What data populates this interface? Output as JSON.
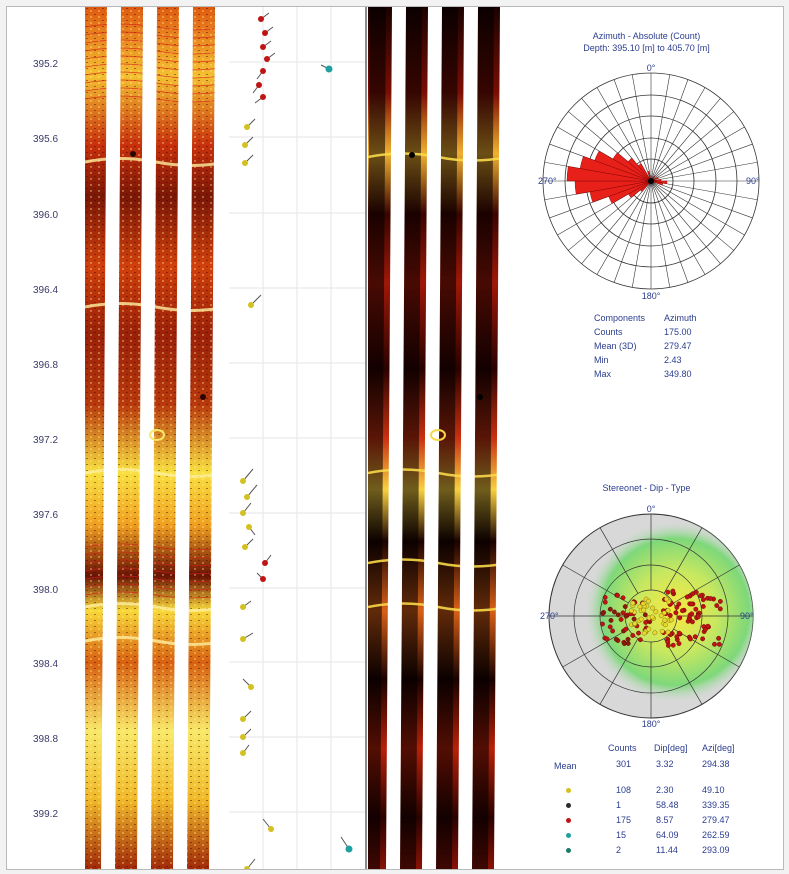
{
  "depth_axis": {
    "labels": [
      "395.2",
      "395.6",
      "396.0",
      "396.4",
      "396.8",
      "397.2",
      "397.6",
      "398.0",
      "398.4",
      "398.8",
      "399.2"
    ]
  },
  "rose_diagram": {
    "title": "Azimuth - Absolute (Count)",
    "subtitle": "Depth: 395.10 [m] to 405.70 [m]",
    "label_north": "0°",
    "label_east": "90°",
    "label_south": "180°",
    "label_west": "270°",
    "stats": {
      "header_left": "Components",
      "header_right": "Azimuth",
      "rows": [
        {
          "label": "Counts",
          "value": "175.00"
        },
        {
          "label": "Mean (3D)",
          "value": "279.47"
        },
        {
          "label": "Min",
          "value": "2.43"
        },
        {
          "label": "Max",
          "value": "349.80"
        }
      ]
    },
    "color": "#e8201a"
  },
  "stereonet": {
    "title": "Stereonet - Dip - Type",
    "label_north": "0°",
    "label_east": "90°",
    "label_south": "180°",
    "label_west": "270°",
    "legend": {
      "headers": [
        "Counts",
        "Dip[deg]",
        "Azi[deg]"
      ],
      "mean_label": "Mean",
      "mean_row": [
        "301",
        "3.32",
        "294.38"
      ],
      "rows": [
        {
          "color": "#d4c020",
          "values": [
            "108",
            "2.30",
            "49.10"
          ]
        },
        {
          "color": "#2c2c2c",
          "values": [
            "1",
            "58.48",
            "339.35"
          ]
        },
        {
          "color": "#c01414",
          "values": [
            "175",
            "8.57",
            "279.47"
          ]
        },
        {
          "color": "#20a0a0",
          "values": [
            "15",
            "64.09",
            "262.59"
          ]
        },
        {
          "color": "#1c7a6a",
          "values": [
            "2",
            "11.44",
            "293.09"
          ]
        }
      ]
    }
  }
}
